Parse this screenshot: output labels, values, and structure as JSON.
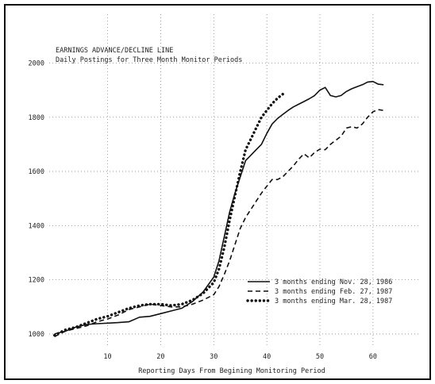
{
  "chart_data": {
    "type": "line",
    "title": "EARNINGS ADVANCE/DECLINE LINE",
    "subtitle": "Daily Postings for Three Month Monitor Periods",
    "xlabel": "Reporting Days From Begining Monitoring Period",
    "ylabel": "",
    "xlim": [
      -1,
      69
    ],
    "ylim": [
      950,
      2180
    ],
    "x_ticks": [
      10,
      20,
      30,
      40,
      50,
      60
    ],
    "x_tick_labels": [
      "10",
      "20",
      "30",
      "40",
      "50",
      "60"
    ],
    "y_ticks": [
      1000,
      1200,
      1400,
      1600,
      1800,
      2000
    ],
    "y_tick_labels": [
      "1000",
      "1200",
      "1400",
      "1600",
      "1800",
      "2000"
    ],
    "grid": "dotted",
    "legend_position": "bottom-right",
    "series": [
      {
        "name": "3 months ending Nov. 28, 1986",
        "style": "solid",
        "x": [
          0,
          2,
          4,
          6,
          8,
          10,
          12,
          14,
          16,
          18,
          20,
          22,
          24,
          26,
          28,
          30,
          31,
          32,
          33,
          34,
          35,
          36,
          37,
          38,
          39,
          40,
          41,
          42,
          43,
          44,
          45,
          46,
          47,
          48,
          49,
          50,
          51,
          52,
          53,
          54,
          55,
          56,
          57,
          58,
          59,
          60,
          61,
          62
        ],
        "y": [
          1000,
          1010,
          1025,
          1035,
          1038,
          1040,
          1042,
          1045,
          1062,
          1065,
          1075,
          1085,
          1095,
          1120,
          1155,
          1210,
          1270,
          1360,
          1450,
          1520,
          1580,
          1640,
          1660,
          1680,
          1700,
          1740,
          1775,
          1795,
          1810,
          1825,
          1838,
          1848,
          1858,
          1868,
          1880,
          1900,
          1910,
          1880,
          1875,
          1880,
          1895,
          1905,
          1913,
          1920,
          1930,
          1932,
          1922,
          1920
        ]
      },
      {
        "name": "3 months ending Feb. 27, 1987",
        "style": "dashed",
        "x": [
          0,
          2,
          4,
          6,
          8,
          10,
          12,
          14,
          16,
          18,
          20,
          22,
          24,
          26,
          28,
          30,
          31,
          32,
          33,
          34,
          35,
          36,
          37,
          38,
          39,
          40,
          41,
          42,
          43,
          44,
          45,
          46,
          47,
          48,
          49,
          50,
          51,
          52,
          53,
          54,
          55,
          56,
          57,
          58,
          59,
          60,
          61,
          62
        ],
        "y": [
          990,
          1010,
          1020,
          1030,
          1045,
          1055,
          1070,
          1090,
          1100,
          1110,
          1105,
          1100,
          1100,
          1110,
          1125,
          1145,
          1175,
          1220,
          1270,
          1330,
          1390,
          1430,
          1460,
          1490,
          1520,
          1545,
          1570,
          1570,
          1580,
          1600,
          1620,
          1645,
          1665,
          1650,
          1670,
          1682,
          1680,
          1700,
          1715,
          1730,
          1760,
          1765,
          1760,
          1775,
          1800,
          1820,
          1828,
          1825
        ]
      },
      {
        "name": "3 months ending Mar. 28, 1987",
        "style": "dotted",
        "x": [
          0,
          2,
          4,
          6,
          8,
          10,
          12,
          14,
          16,
          18,
          20,
          22,
          24,
          26,
          28,
          30,
          31,
          32,
          33,
          34,
          35,
          36,
          37,
          38,
          39,
          40,
          41,
          42,
          43
        ],
        "y": [
          995,
          1015,
          1025,
          1040,
          1055,
          1065,
          1080,
          1095,
          1105,
          1110,
          1110,
          1105,
          1110,
          1125,
          1150,
          1190,
          1240,
          1320,
          1420,
          1510,
          1600,
          1680,
          1720,
          1760,
          1800,
          1825,
          1850,
          1870,
          1885
        ]
      }
    ]
  }
}
